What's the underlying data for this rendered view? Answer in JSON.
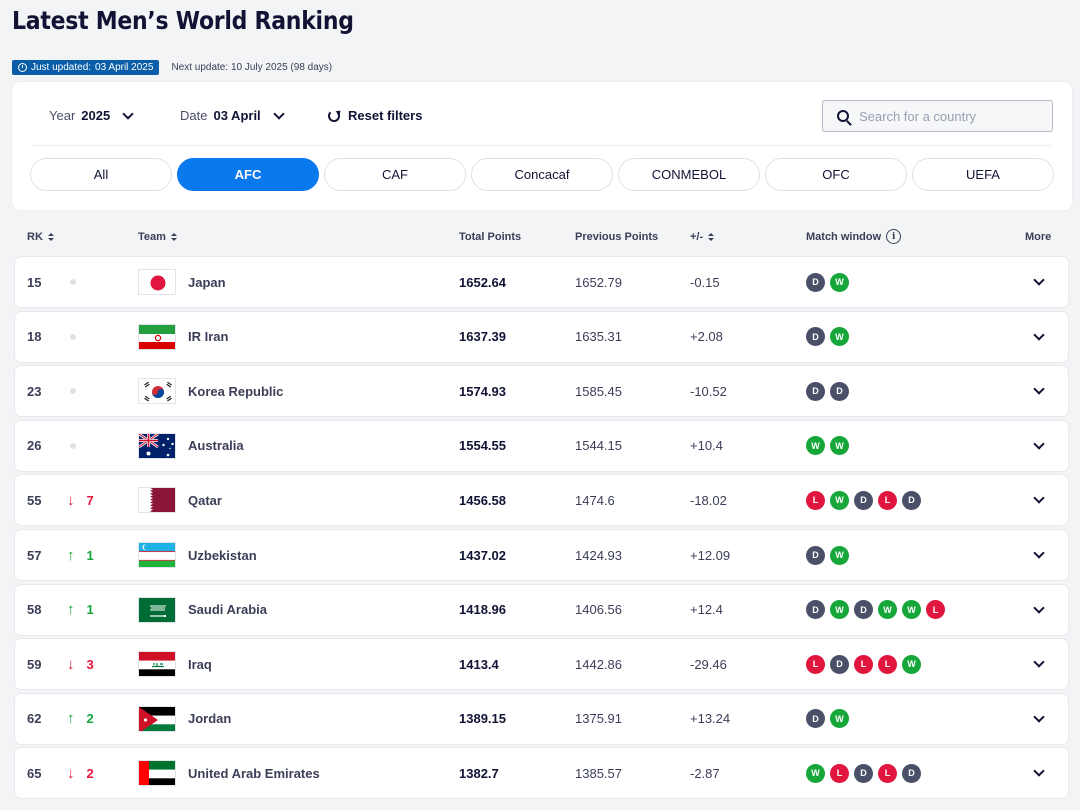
{
  "page": {
    "title": "Latest Men’s World Ranking",
    "just_updated_label": "Just updated:",
    "just_updated_value": "03 April 2025",
    "next_update_label": "Next update:",
    "next_update_value": "10 July 2025 (98 days)"
  },
  "filters": {
    "year_label": "Year",
    "year_value": "2025",
    "date_label": "Date",
    "date_value": "03 April",
    "reset_label": "Reset filters",
    "search_placeholder": "Search for a country",
    "tabs": [
      "All",
      "AFC",
      "CAF",
      "Concacaf",
      "CONMEBOL",
      "OFC",
      "UEFA"
    ],
    "active_tab": "AFC"
  },
  "table": {
    "headers": {
      "rank": "RK",
      "team": "Team",
      "total_points": "Total Points",
      "previous_points": "Previous Points",
      "diff": "+/-",
      "match_window": "Match window",
      "more": "More"
    },
    "rows": [
      {
        "rank": "15",
        "move_dir": "none",
        "move": "",
        "team": "Japan",
        "flag": "japan",
        "total": "1652.64",
        "previous": "1652.79",
        "diff": "-0.15",
        "results": [
          "D",
          "W"
        ]
      },
      {
        "rank": "18",
        "move_dir": "none",
        "move": "",
        "team": "IR Iran",
        "flag": "iran",
        "total": "1637.39",
        "previous": "1635.31",
        "diff": "+2.08",
        "results": [
          "D",
          "W"
        ]
      },
      {
        "rank": "23",
        "move_dir": "none",
        "move": "",
        "team": "Korea Republic",
        "flag": "korea",
        "total": "1574.93",
        "previous": "1585.45",
        "diff": "-10.52",
        "results": [
          "D",
          "D"
        ]
      },
      {
        "rank": "26",
        "move_dir": "none",
        "move": "",
        "team": "Australia",
        "flag": "australia",
        "total": "1554.55",
        "previous": "1544.15",
        "diff": "+10.4",
        "results": [
          "W",
          "W"
        ]
      },
      {
        "rank": "55",
        "move_dir": "down",
        "move": "7",
        "team": "Qatar",
        "flag": "qatar",
        "total": "1456.58",
        "previous": "1474.6",
        "diff": "-18.02",
        "results": [
          "L",
          "W",
          "D",
          "L",
          "D"
        ]
      },
      {
        "rank": "57",
        "move_dir": "up",
        "move": "1",
        "team": "Uzbekistan",
        "flag": "uzbekistan",
        "total": "1437.02",
        "previous": "1424.93",
        "diff": "+12.09",
        "results": [
          "D",
          "W"
        ]
      },
      {
        "rank": "58",
        "move_dir": "up",
        "move": "1",
        "team": "Saudi Arabia",
        "flag": "saudi",
        "total": "1418.96",
        "previous": "1406.56",
        "diff": "+12.4",
        "results": [
          "D",
          "W",
          "D",
          "W",
          "W",
          "L"
        ]
      },
      {
        "rank": "59",
        "move_dir": "down",
        "move": "3",
        "team": "Iraq",
        "flag": "iraq",
        "total": "1413.4",
        "previous": "1442.86",
        "diff": "-29.46",
        "results": [
          "L",
          "D",
          "L",
          "L",
          "W"
        ]
      },
      {
        "rank": "62",
        "move_dir": "up",
        "move": "2",
        "team": "Jordan",
        "flag": "jordan",
        "total": "1389.15",
        "previous": "1375.91",
        "diff": "+13.24",
        "results": [
          "D",
          "W"
        ]
      },
      {
        "rank": "65",
        "move_dir": "down",
        "move": "2",
        "team": "United Arab Emirates",
        "flag": "uae",
        "total": "1382.7",
        "previous": "1385.57",
        "diff": "-2.87",
        "results": [
          "W",
          "L",
          "D",
          "L",
          "D"
        ]
      }
    ]
  },
  "colors": {
    "accent": "#0a79ed",
    "win": "#16a639",
    "draw": "#4a5068",
    "loss": "#e0163e",
    "up": "#13a539",
    "down": "#e5163a"
  }
}
